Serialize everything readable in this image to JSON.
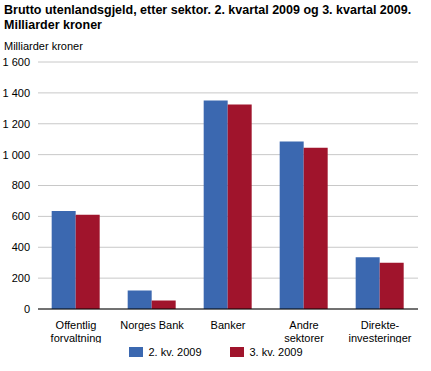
{
  "chart_data": {
    "type": "bar",
    "title": "Brutto utenlandsgjeld, etter sektor. 2. kvartal 2009 og 3. kvartal 2009. Milliarder kroner",
    "y_label": "Milliarder kroner",
    "categories": [
      "Offentlig forvaltning",
      "Norges Bank",
      "Banker",
      "Andre sektorer",
      "Direkte-investeringer"
    ],
    "series": [
      {
        "name": "2. kv. 2009",
        "color": "#3b68b0",
        "values": [
          635,
          120,
          1350,
          1085,
          335
        ]
      },
      {
        "name": "3. kv. 2009",
        "color": "#a0142c",
        "values": [
          610,
          55,
          1325,
          1045,
          300
        ]
      }
    ],
    "ylim": [
      0,
      1600
    ],
    "yticks": [
      0,
      200,
      400,
      600,
      800,
      {
        "value": 1000,
        "label": "1 000"
      },
      {
        "value": 1200,
        "label": "1 200"
      },
      {
        "value": 1400,
        "label": "1 400"
      },
      {
        "value": 1600,
        "label": "1 600"
      }
    ],
    "grid": true,
    "legend": "bottom"
  }
}
